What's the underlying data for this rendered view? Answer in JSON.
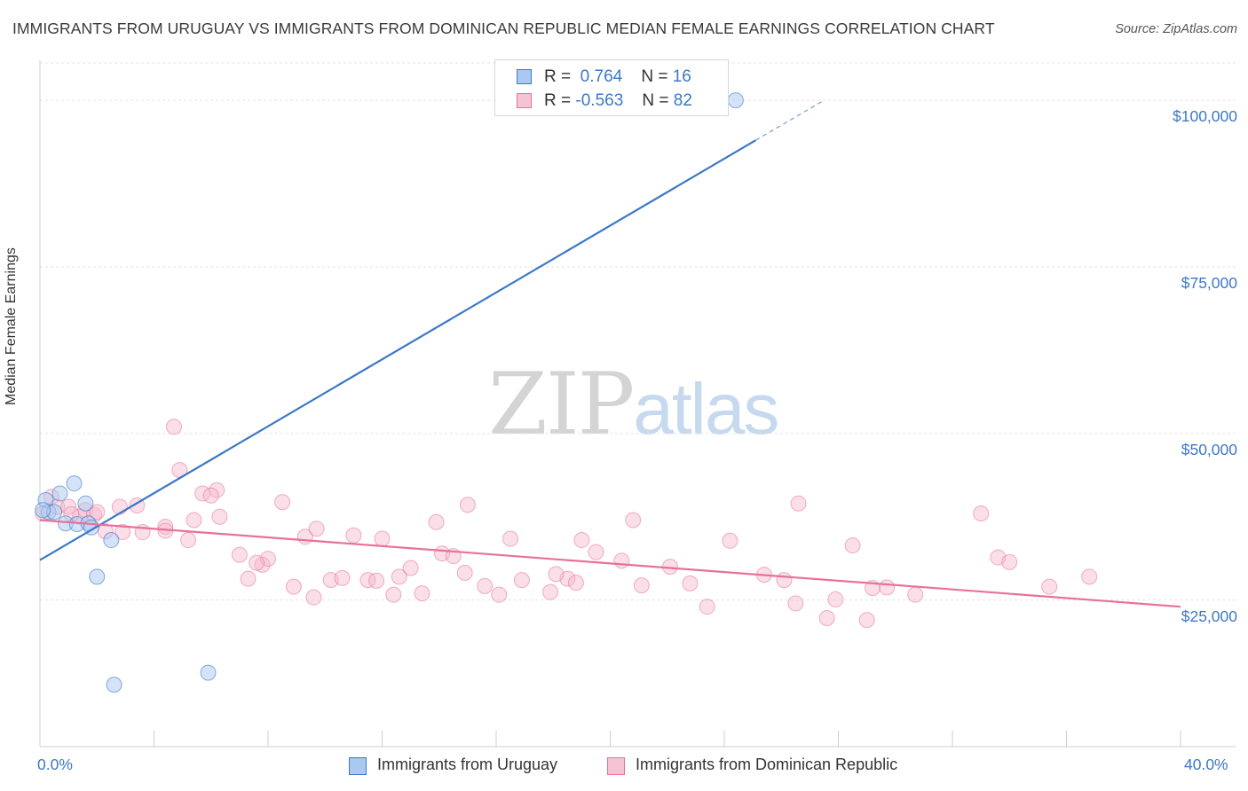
{
  "title": "IMMIGRANTS FROM URUGUAY VS IMMIGRANTS FROM DOMINICAN REPUBLIC MEDIAN FEMALE EARNINGS CORRELATION CHART",
  "source": "Source: ZipAtlas.com",
  "watermark": {
    "zip": "ZIP",
    "atlas": "atlas"
  },
  "colors": {
    "blue": "#3c78c8",
    "blue_fill": "#aac8f0",
    "pink": "#e8709a",
    "pink_fill": "#f5b8cc",
    "grid": "#e3e3e3"
  },
  "legend": {
    "rows": [
      {
        "r_label": "R =",
        "r_value": "0.764",
        "n_label": "N =",
        "n_value": "16"
      },
      {
        "r_label": "R =",
        "r_value": "-0.563",
        "n_label": "N =",
        "n_value": "82"
      }
    ]
  },
  "bottom_legend": [
    "Immigrants from Uruguay",
    "Immigrants from Dominican Republic"
  ],
  "chart_data": {
    "type": "scatter",
    "title": "IMMIGRANTS FROM URUGUAY VS IMMIGRANTS FROM DOMINICAN REPUBLIC MEDIAN FEMALE EARNINGS CORRELATION CHART",
    "xlabel": "",
    "ylabel": "Median Female Earnings",
    "xlim": [
      0,
      40
    ],
    "ylim": [
      3000,
      106000
    ],
    "x_tick_labels": {
      "min": "0.0%",
      "max": "40.0%"
    },
    "y_ticks": [
      {
        "value": 25000,
        "label": "$25,000"
      },
      {
        "value": 50000,
        "label": "$50,000"
      },
      {
        "value": 75000,
        "label": "$75,000"
      },
      {
        "value": 100000,
        "label": "$100,000"
      }
    ],
    "series": [
      {
        "name": "Immigrants from Uruguay",
        "color": "#3c78c8",
        "r": 0.764,
        "n": 16,
        "trend": {
          "x0": 0,
          "y0": 31000,
          "x1": 25.1,
          "y1": 94000,
          "dash_x1": 27.5,
          "dash_y1": 100000
        },
        "points": [
          [
            0.2,
            40000
          ],
          [
            0.3,
            38200
          ],
          [
            0.5,
            38200
          ],
          [
            0.7,
            41000
          ],
          [
            0.9,
            36500
          ],
          [
            1.2,
            42500
          ],
          [
            1.3,
            36400
          ],
          [
            1.6,
            39500
          ],
          [
            1.7,
            36500
          ],
          [
            1.8,
            35900
          ],
          [
            2.0,
            28500
          ],
          [
            2.5,
            34000
          ],
          [
            2.6,
            12300
          ],
          [
            5.9,
            14100
          ],
          [
            24.4,
            100000
          ],
          [
            0.1,
            38500
          ]
        ]
      },
      {
        "name": "Immigrants from Dominican Republic",
        "color": "#e8709a",
        "r": -0.563,
        "n": 82,
        "trend": {
          "x0": 0,
          "y0": 37000,
          "x1": 40,
          "y1": 24000
        },
        "points": [
          [
            0.1,
            38000
          ],
          [
            0.4,
            40500
          ],
          [
            0.6,
            39000
          ],
          [
            1.0,
            39000
          ],
          [
            1.4,
            37500
          ],
          [
            1.6,
            38500
          ],
          [
            1.9,
            37800
          ],
          [
            2.3,
            35300
          ],
          [
            2.8,
            39000
          ],
          [
            2.9,
            35200
          ],
          [
            3.6,
            35200
          ],
          [
            4.4,
            36000
          ],
          [
            4.7,
            51000
          ],
          [
            4.9,
            44500
          ],
          [
            4.4,
            35400
          ],
          [
            5.2,
            34000
          ],
          [
            5.4,
            37000
          ],
          [
            5.7,
            41000
          ],
          [
            6.2,
            41500
          ],
          [
            6.3,
            37500
          ],
          [
            7.0,
            31800
          ],
          [
            7.3,
            28200
          ],
          [
            7.8,
            30300
          ],
          [
            8.0,
            31200
          ],
          [
            8.5,
            39700
          ],
          [
            8.9,
            27000
          ],
          [
            9.3,
            34500
          ],
          [
            9.7,
            35700
          ],
          [
            10.2,
            28000
          ],
          [
            10.6,
            28300
          ],
          [
            11.0,
            34700
          ],
          [
            11.5,
            28000
          ],
          [
            12.0,
            34200
          ],
          [
            12.6,
            28500
          ],
          [
            12.4,
            25800
          ],
          [
            13.0,
            29800
          ],
          [
            13.4,
            26000
          ],
          [
            14.1,
            32000
          ],
          [
            14.5,
            31600
          ],
          [
            13.9,
            36700
          ],
          [
            15.0,
            39300
          ],
          [
            15.6,
            27100
          ],
          [
            16.1,
            25800
          ],
          [
            16.5,
            34200
          ],
          [
            16.9,
            28000
          ],
          [
            17.9,
            26200
          ],
          [
            18.5,
            28200
          ],
          [
            18.8,
            27600
          ],
          [
            19.0,
            34000
          ],
          [
            19.5,
            32200
          ],
          [
            20.4,
            30900
          ],
          [
            20.8,
            37000
          ],
          [
            21.1,
            27200
          ],
          [
            22.1,
            30000
          ],
          [
            22.8,
            27500
          ],
          [
            23.4,
            24000
          ],
          [
            24.2,
            33900
          ],
          [
            25.4,
            28800
          ],
          [
            26.1,
            28000
          ],
          [
            26.5,
            24500
          ],
          [
            26.6,
            39500
          ],
          [
            27.6,
            22300
          ],
          [
            28.5,
            33200
          ],
          [
            29.0,
            22000
          ],
          [
            29.2,
            26800
          ],
          [
            29.7,
            26900
          ],
          [
            30.7,
            25800
          ],
          [
            33.0,
            38000
          ],
          [
            33.6,
            31400
          ],
          [
            34.0,
            30700
          ],
          [
            35.4,
            27000
          ],
          [
            36.8,
            28500
          ],
          [
            1.1,
            37900
          ],
          [
            2.0,
            38200
          ],
          [
            3.4,
            39200
          ],
          [
            6.0,
            40700
          ],
          [
            7.6,
            30600
          ],
          [
            9.6,
            25400
          ],
          [
            11.8,
            27900
          ],
          [
            14.9,
            29100
          ],
          [
            18.1,
            28900
          ],
          [
            27.9,
            25100
          ]
        ]
      }
    ]
  }
}
